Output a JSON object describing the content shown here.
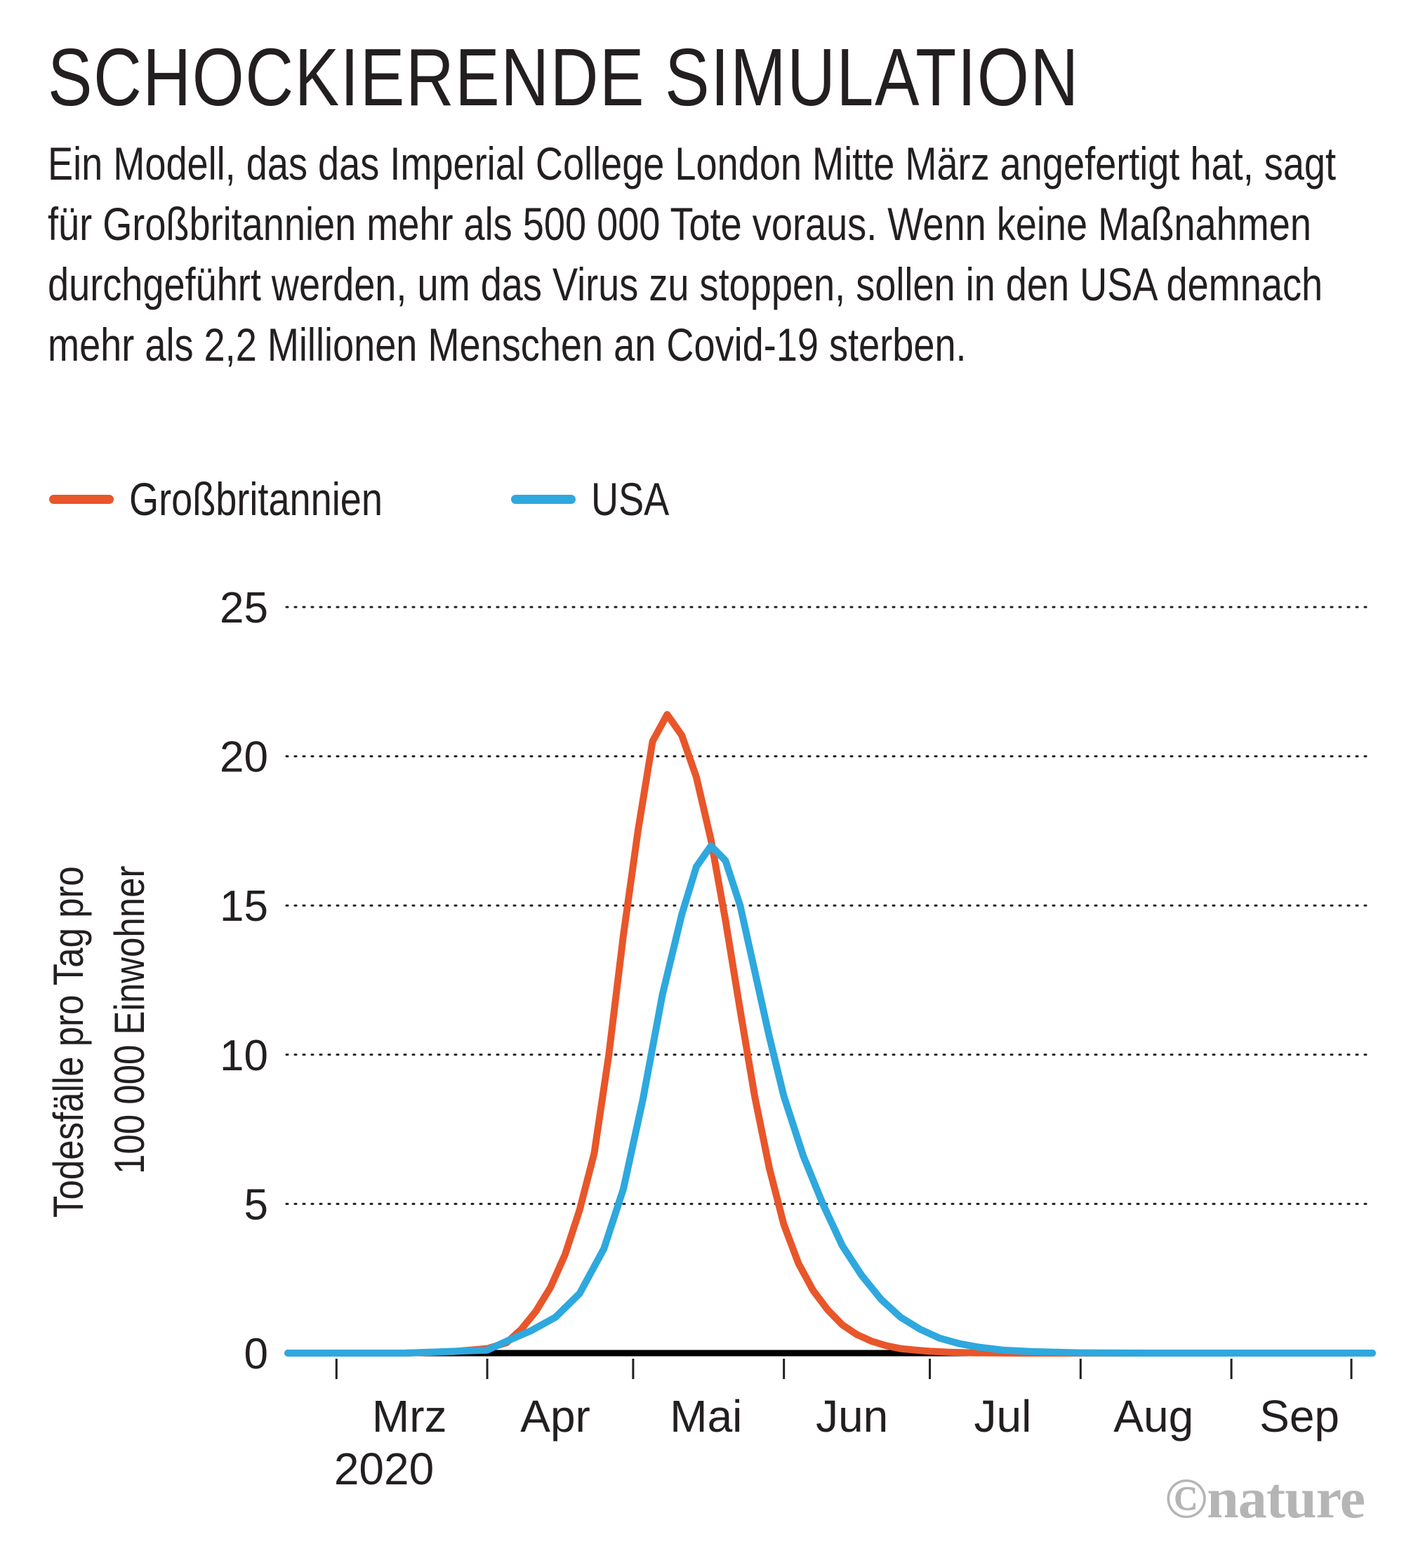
{
  "title": "SCHOCKIERENDE SIMULATION",
  "subtitle": "Ein Modell, das das Imperial College London Mitte März angefertigt hat, sagt für Großbritannien mehr als 500 000 Tote voraus. Wenn keine Maßnahmen durchgeführt werden, um das Virus zu stoppen, sollen in den USA demnach mehr als 2,2 Millionen Menschen an Covid-19 sterben.",
  "credit": "©nature",
  "chart_data": {
    "type": "line",
    "ylabel_lines": [
      "Todesfälle pro Tag pro",
      "100 000 Einwohner"
    ],
    "ylim": [
      0,
      25
    ],
    "yticks": [
      0,
      5,
      10,
      15,
      20,
      25
    ],
    "grid": "horizontal dotted",
    "legend_position": "top-left",
    "x_months": [
      "Mrz",
      "Apr",
      "Mai",
      "Jun",
      "Jul",
      "Aug",
      "Sep"
    ],
    "x_year_label": "2020",
    "series": [
      {
        "name": "Großbritannien",
        "color": "#e8562a",
        "x": [
          "2020-02-20",
          "2020-03-01",
          "2020-03-15",
          "2020-03-25",
          "2020-04-01",
          "2020-04-05",
          "2020-04-08",
          "2020-04-11",
          "2020-04-14",
          "2020-04-17",
          "2020-04-20",
          "2020-04-23",
          "2020-04-26",
          "2020-04-29",
          "2020-05-02",
          "2020-05-05",
          "2020-05-08",
          "2020-05-11",
          "2020-05-14",
          "2020-05-17",
          "2020-05-20",
          "2020-05-23",
          "2020-05-26",
          "2020-05-29",
          "2020-06-01",
          "2020-06-04",
          "2020-06-07",
          "2020-06-10",
          "2020-06-13",
          "2020-06-16",
          "2020-06-19",
          "2020-06-22",
          "2020-06-25",
          "2020-06-28",
          "2020-07-01",
          "2020-07-05",
          "2020-07-10",
          "2020-07-20",
          "2020-08-01",
          "2020-08-20",
          "2020-09-10",
          "2020-09-30"
        ],
        "values": [
          0,
          0,
          0,
          0.05,
          0.15,
          0.35,
          0.8,
          1.4,
          2.2,
          3.3,
          4.8,
          6.7,
          10.0,
          14.0,
          17.5,
          20.5,
          21.4,
          20.7,
          19.3,
          17.2,
          14.5,
          11.5,
          8.6,
          6.2,
          4.3,
          3.0,
          2.1,
          1.45,
          0.95,
          0.62,
          0.4,
          0.25,
          0.15,
          0.1,
          0.06,
          0.03,
          0.01,
          0,
          0,
          0,
          0,
          0
        ]
      },
      {
        "name": "USA",
        "color": "#2ea8de",
        "x": [
          "2020-02-20",
          "2020-03-15",
          "2020-04-01",
          "2020-04-05",
          "2020-04-10",
          "2020-04-15",
          "2020-04-20",
          "2020-04-25",
          "2020-04-29",
          "2020-05-03",
          "2020-05-07",
          "2020-05-11",
          "2020-05-14",
          "2020-05-17",
          "2020-05-20",
          "2020-05-23",
          "2020-05-26",
          "2020-05-29",
          "2020-06-01",
          "2020-06-05",
          "2020-06-09",
          "2020-06-13",
          "2020-06-17",
          "2020-06-21",
          "2020-06-25",
          "2020-06-29",
          "2020-07-03",
          "2020-07-07",
          "2020-07-11",
          "2020-07-16",
          "2020-07-22",
          "2020-08-01",
          "2020-08-15",
          "2020-09-01",
          "2020-09-30"
        ],
        "values": [
          0,
          0,
          0.1,
          0.4,
          0.75,
          1.2,
          2.0,
          3.5,
          5.5,
          8.5,
          12.0,
          14.7,
          16.3,
          17.0,
          16.5,
          15.0,
          12.8,
          10.6,
          8.6,
          6.6,
          5.0,
          3.6,
          2.6,
          1.8,
          1.2,
          0.8,
          0.5,
          0.32,
          0.2,
          0.1,
          0.05,
          0.01,
          0,
          0,
          0
        ]
      }
    ]
  }
}
